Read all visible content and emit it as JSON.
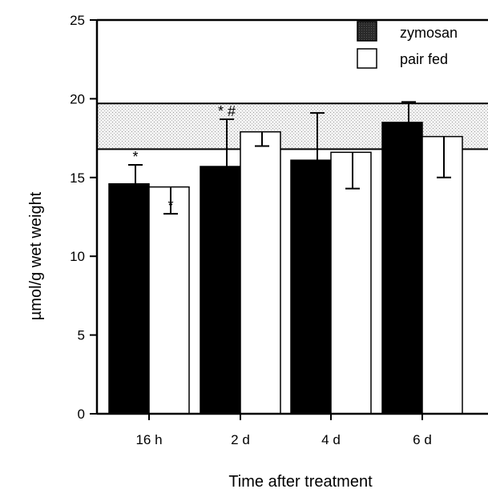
{
  "chart_data": {
    "type": "bar",
    "xlabel": "Time after treatment",
    "ylabel": "µmol/g wet weight",
    "ylim": [
      0,
      25
    ],
    "yticks": [
      0,
      5,
      10,
      15,
      20,
      25
    ],
    "categories": [
      "16 h",
      "2 d",
      "4 d",
      "6 d"
    ],
    "series": [
      {
        "name": "zymosan",
        "color": "#000000",
        "values": [
          14.6,
          15.7,
          16.1,
          18.5
        ],
        "error": [
          1.2,
          3.0,
          3.0,
          1.3
        ],
        "error_direction": "up",
        "annotations": [
          "*",
          "* #",
          "",
          ""
        ]
      },
      {
        "name": "pair fed",
        "color": "#ffffff",
        "values": [
          14.4,
          17.9,
          16.6,
          17.6
        ],
        "error": [
          1.7,
          0.9,
          2.3,
          2.6
        ],
        "error_direction": "down",
        "annotations": [
          "*",
          "",
          "",
          ""
        ]
      }
    ],
    "reference_band": {
      "low": 16.8,
      "high": 19.7
    },
    "legend_position": "top-right",
    "grid": false
  }
}
